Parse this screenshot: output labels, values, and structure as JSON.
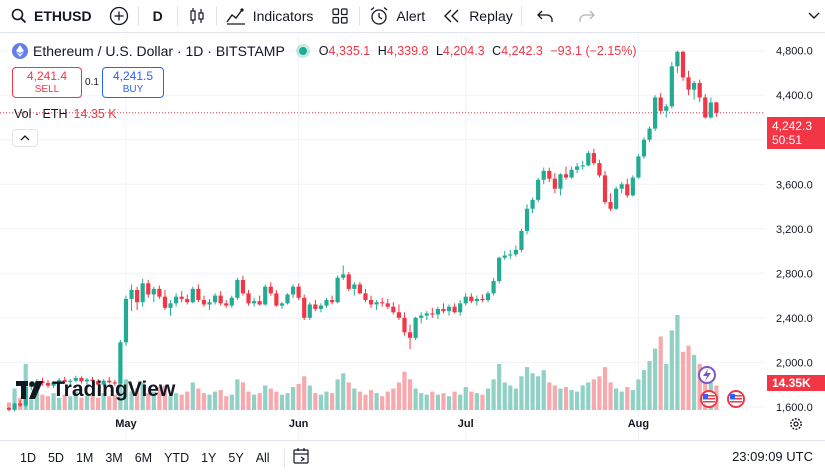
{
  "toolbar": {
    "symbol": "ETHUSD",
    "interval": "D",
    "indicators_label": "Indicators",
    "alert_label": "Alert",
    "replay_label": "Replay"
  },
  "legend": {
    "title": "Ethereum / U.S. Dollar · 1D · BITSTAMP",
    "o_key": "O",
    "o_val": "4,335.1",
    "h_key": "H",
    "h_val": "4,339.8",
    "l_key": "L",
    "l_val": "4,204.3",
    "c_key": "C",
    "c_val": "4,242.3",
    "change": "−93.1 (−2.15%)"
  },
  "trade": {
    "sell_price": "4,241.4",
    "sell_label": "SELL",
    "spread": "0.1",
    "buy_price": "4,241.5",
    "buy_label": "BUY"
  },
  "volume": {
    "label": "Vol · ETH",
    "value": "14.35 K",
    "axis_tag": "14.35K"
  },
  "price_tag": {
    "price": "4,242.3",
    "countdown": "50:51"
  },
  "watermark": "TradingView",
  "bottom": {
    "ranges": [
      "1D",
      "5D",
      "1M",
      "3M",
      "6M",
      "YTD",
      "1Y",
      "5Y",
      "All"
    ],
    "clock": "23:09:09 UTC"
  },
  "colors": {
    "up": "#22ab94",
    "down": "#f23645",
    "up_vol": "#8fd1c4",
    "down_vol": "#f7a9ae",
    "grid": "#f0f3fa"
  },
  "chart_data": {
    "type": "candlestick",
    "y_ticks": [
      "4,800.0",
      "4,400.0",
      "4,000.0",
      "3,600.0",
      "3,200.0",
      "2,800.0",
      "2,400.0",
      "2,000.0",
      "1,600.0"
    ],
    "ylim": [
      1500,
      4950
    ],
    "x_ticks": [
      {
        "label": "May",
        "index": 21
      },
      {
        "label": "Jun",
        "index": 52
      },
      {
        "label": "Jul",
        "index": 82
      },
      {
        "label": "Aug",
        "index": 113
      }
    ],
    "candles": [
      [
        1590,
        1600,
        1560,
        1575
      ],
      [
        1575,
        1640,
        1560,
        1630
      ],
      [
        1630,
        1660,
        1600,
        1612
      ],
      [
        1612,
        1790,
        1600,
        1780
      ],
      [
        1780,
        1830,
        1750,
        1800
      ],
      [
        1800,
        1850,
        1780,
        1830
      ],
      [
        1830,
        1860,
        1790,
        1815
      ],
      [
        1815,
        1840,
        1770,
        1790
      ],
      [
        1790,
        1830,
        1770,
        1820
      ],
      [
        1820,
        1860,
        1800,
        1840
      ],
      [
        1840,
        1870,
        1810,
        1825
      ],
      [
        1825,
        1850,
        1800,
        1835
      ],
      [
        1835,
        1880,
        1820,
        1860
      ],
      [
        1860,
        1875,
        1810,
        1830
      ],
      [
        1830,
        1860,
        1800,
        1845
      ],
      [
        1845,
        1870,
        1820,
        1830
      ],
      [
        1830,
        1850,
        1790,
        1800
      ],
      [
        1800,
        1850,
        1780,
        1835
      ],
      [
        1835,
        1870,
        1810,
        1820
      ],
      [
        1820,
        1840,
        1790,
        1810
      ],
      [
        1810,
        2200,
        1800,
        2180
      ],
      [
        2180,
        2600,
        2150,
        2570
      ],
      [
        2570,
        2700,
        2460,
        2650
      ],
      [
        2650,
        2680,
        2470,
        2540
      ],
      [
        2540,
        2750,
        2500,
        2710
      ],
      [
        2710,
        2740,
        2580,
        2610
      ],
      [
        2610,
        2680,
        2540,
        2660
      ],
      [
        2660,
        2690,
        2570,
        2590
      ],
      [
        2590,
        2650,
        2470,
        2490
      ],
      [
        2490,
        2560,
        2420,
        2530
      ],
      [
        2530,
        2620,
        2500,
        2590
      ],
      [
        2590,
        2640,
        2540,
        2570
      ],
      [
        2570,
        2610,
        2520,
        2540
      ],
      [
        2540,
        2680,
        2530,
        2660
      ],
      [
        2660,
        2700,
        2540,
        2560
      ],
      [
        2560,
        2600,
        2500,
        2520
      ],
      [
        2520,
        2570,
        2470,
        2540
      ],
      [
        2540,
        2620,
        2520,
        2600
      ],
      [
        2600,
        2640,
        2510,
        2530
      ],
      [
        2530,
        2560,
        2490,
        2510
      ],
      [
        2510,
        2600,
        2490,
        2580
      ],
      [
        2580,
        2760,
        2560,
        2740
      ],
      [
        2740,
        2780,
        2600,
        2620
      ],
      [
        2620,
        2650,
        2510,
        2530
      ],
      [
        2530,
        2580,
        2500,
        2550
      ],
      [
        2550,
        2600,
        2510,
        2520
      ],
      [
        2520,
        2700,
        2510,
        2680
      ],
      [
        2680,
        2720,
        2600,
        2620
      ],
      [
        2620,
        2650,
        2500,
        2510
      ],
      [
        2510,
        2540,
        2480,
        2530
      ],
      [
        2530,
        2620,
        2520,
        2610
      ],
      [
        2610,
        2700,
        2580,
        2680
      ],
      [
        2680,
        2710,
        2560,
        2580
      ],
      [
        2580,
        2610,
        2380,
        2400
      ],
      [
        2400,
        2540,
        2380,
        2520
      ],
      [
        2520,
        2560,
        2460,
        2480
      ],
      [
        2480,
        2530,
        2450,
        2510
      ],
      [
        2510,
        2580,
        2490,
        2560
      ],
      [
        2560,
        2600,
        2520,
        2540
      ],
      [
        2540,
        2780,
        2530,
        2760
      ],
      [
        2760,
        2870,
        2740,
        2790
      ],
      [
        2790,
        2810,
        2640,
        2660
      ],
      [
        2660,
        2720,
        2600,
        2700
      ],
      [
        2700,
        2720,
        2610,
        2620
      ],
      [
        2620,
        2660,
        2540,
        2560
      ],
      [
        2560,
        2600,
        2490,
        2520
      ],
      [
        2520,
        2560,
        2470,
        2540
      ],
      [
        2540,
        2580,
        2500,
        2530
      ],
      [
        2530,
        2570,
        2480,
        2500
      ],
      [
        2500,
        2540,
        2430,
        2450
      ],
      [
        2450,
        2520,
        2380,
        2400
      ],
      [
        2400,
        2450,
        2240,
        2270
      ],
      [
        2270,
        2340,
        2120,
        2220
      ],
      [
        2220,
        2410,
        2200,
        2400
      ],
      [
        2400,
        2450,
        2350,
        2420
      ],
      [
        2420,
        2460,
        2380,
        2440
      ],
      [
        2440,
        2490,
        2400,
        2430
      ],
      [
        2430,
        2500,
        2390,
        2480
      ],
      [
        2480,
        2530,
        2440,
        2460
      ],
      [
        2460,
        2520,
        2420,
        2500
      ],
      [
        2500,
        2530,
        2440,
        2450
      ],
      [
        2450,
        2560,
        2420,
        2530
      ],
      [
        2530,
        2620,
        2510,
        2590
      ],
      [
        2590,
        2620,
        2530,
        2550
      ],
      [
        2550,
        2600,
        2510,
        2570
      ],
      [
        2570,
        2610,
        2540,
        2560
      ],
      [
        2560,
        2640,
        2540,
        2620
      ],
      [
        2620,
        2760,
        2600,
        2730
      ],
      [
        2730,
        2950,
        2710,
        2940
      ],
      [
        2940,
        3000,
        2920,
        2960
      ],
      [
        2960,
        3010,
        2930,
        2970
      ],
      [
        2970,
        3050,
        2950,
        3010
      ],
      [
        3010,
        3200,
        2990,
        3180
      ],
      [
        3180,
        3420,
        3150,
        3380
      ],
      [
        3380,
        3480,
        3340,
        3460
      ],
      [
        3460,
        3660,
        3440,
        3640
      ],
      [
        3640,
        3750,
        3600,
        3720
      ],
      [
        3720,
        3750,
        3620,
        3650
      ],
      [
        3650,
        3700,
        3520,
        3560
      ],
      [
        3560,
        3700,
        3500,
        3690
      ],
      [
        3690,
        3760,
        3640,
        3660
      ],
      [
        3660,
        3760,
        3650,
        3730
      ],
      [
        3730,
        3790,
        3700,
        3760
      ],
      [
        3760,
        3810,
        3730,
        3770
      ],
      [
        3770,
        3900,
        3760,
        3880
      ],
      [
        3880,
        3920,
        3770,
        3790
      ],
      [
        3790,
        3820,
        3660,
        3680
      ],
      [
        3680,
        3720,
        3420,
        3440
      ],
      [
        3440,
        3520,
        3360,
        3380
      ],
      [
        3380,
        3580,
        3370,
        3560
      ],
      [
        3560,
        3620,
        3520,
        3600
      ],
      [
        3600,
        3650,
        3480,
        3500
      ],
      [
        3500,
        3680,
        3490,
        3660
      ],
      [
        3660,
        3870,
        3650,
        3850
      ],
      [
        3850,
        4020,
        3830,
        4000
      ],
      [
        4000,
        4120,
        3980,
        4100
      ],
      [
        4100,
        4400,
        4080,
        4380
      ],
      [
        4380,
        4420,
        4230,
        4260
      ],
      [
        4260,
        4320,
        4200,
        4300
      ],
      [
        4300,
        4700,
        4280,
        4660
      ],
      [
        4660,
        4800,
        4600,
        4790
      ],
      [
        4790,
        4800,
        4530,
        4560
      ],
      [
        4560,
        4620,
        4400,
        4450
      ],
      [
        4450,
        4530,
        4360,
        4510
      ],
      [
        4510,
        4540,
        4340,
        4380
      ],
      [
        4380,
        4410,
        4190,
        4200
      ],
      [
        4200,
        4380,
        4190,
        4335
      ],
      [
        4335,
        4340,
        4204,
        4242
      ]
    ],
    "volume_bars": [
      5,
      14,
      8,
      30,
      7,
      12,
      10,
      9,
      11,
      8,
      10,
      9,
      12,
      8,
      9,
      10,
      8,
      11,
      9,
      10,
      25,
      20,
      12,
      14,
      18,
      11,
      12,
      15,
      16,
      9,
      11,
      10,
      12,
      18,
      14,
      11,
      10,
      12,
      13,
      9,
      10,
      20,
      18,
      12,
      10,
      11,
      16,
      14,
      12,
      10,
      11,
      15,
      17,
      22,
      16,
      11,
      10,
      12,
      11,
      20,
      24,
      18,
      14,
      12,
      10,
      13,
      11,
      9,
      12,
      14,
      18,
      25,
      20,
      14,
      11,
      10,
      12,
      10,
      11,
      9,
      12,
      10,
      15,
      12,
      11,
      10,
      14,
      20,
      30,
      18,
      16,
      14,
      22,
      28,
      24,
      22,
      26,
      18,
      16,
      14,
      15,
      13,
      12,
      16,
      18,
      20,
      22,
      28,
      18,
      14,
      12,
      15,
      13,
      20,
      26,
      32,
      40,
      48,
      30,
      52,
      62,
      38,
      42,
      36,
      30,
      22,
      18,
      16
    ]
  }
}
